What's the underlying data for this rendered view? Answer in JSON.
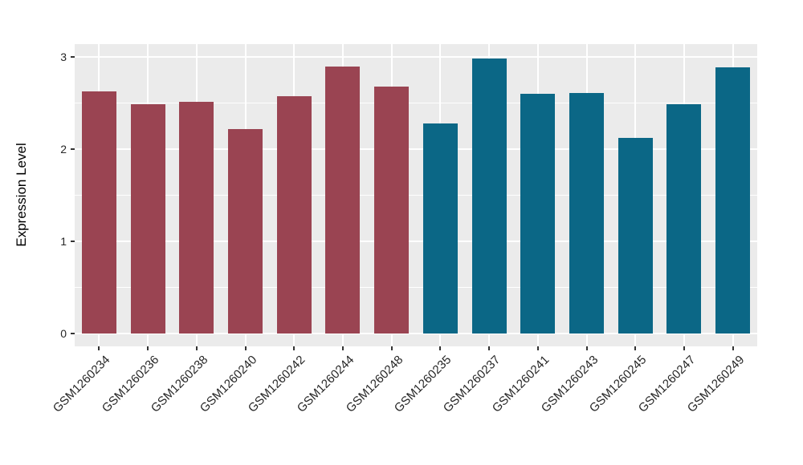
{
  "chart_data": {
    "type": "bar",
    "title": "",
    "xlabel": "",
    "ylabel": "Expression Level",
    "ylim": [
      0,
      3.14
    ],
    "yticks": [
      0,
      1,
      2,
      3
    ],
    "grid": "white major and minor horizontal lines, white vertical lines at category centers, on gray panel",
    "legend_position": "none",
    "categories": [
      "GSM1260234",
      "GSM1260236",
      "GSM1260238",
      "GSM1260240",
      "GSM1260242",
      "GSM1260244",
      "GSM1260248",
      "GSM1260235",
      "GSM1260237",
      "GSM1260241",
      "GSM1260243",
      "GSM1260245",
      "GSM1260247",
      "GSM1260249"
    ],
    "values": [
      2.63,
      2.49,
      2.51,
      2.22,
      2.57,
      2.9,
      2.68,
      2.28,
      2.98,
      2.6,
      2.61,
      2.12,
      2.49,
      2.89
    ],
    "groups": [
      1,
      1,
      1,
      1,
      1,
      1,
      1,
      2,
      2,
      2,
      2,
      2,
      2,
      2
    ],
    "group_colors": {
      "1": "#9A4452",
      "2": "#0B6786"
    },
    "colors": {
      "panel_background": "#EBEBEB",
      "gridline": "#FFFFFF",
      "axis_text": "#262626",
      "tick_marks": "#333333"
    }
  }
}
